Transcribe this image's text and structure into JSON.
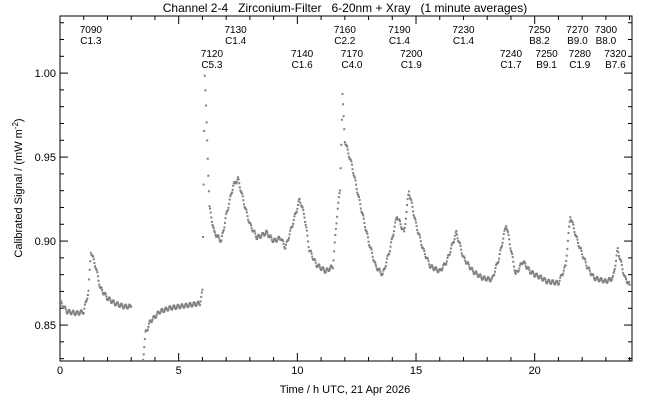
{
  "chart_data": {
    "type": "scatter",
    "title": "Channel 2-4   Zirconium-Filter   6-20nm + Xray   (1 minute averages)",
    "xlabel": "Time / h UTC, 21 Apr 2026",
    "ylabel": "Calibrated Signal / (mW m",
    "ylabel_sup": "-2",
    "ylabel_end": ")",
    "xlim": [
      0,
      24.1
    ],
    "ylim": [
      0.8286,
      1.034
    ],
    "xticks": [
      0,
      5,
      10,
      15,
      20
    ],
    "xtick_labels": [
      "0",
      "5",
      "10",
      "15",
      "20"
    ],
    "yticks": [
      0.85,
      0.9,
      0.95,
      1.0
    ],
    "ytick_labels": [
      "0.85",
      "0.90",
      "0.95",
      "1.00"
    ],
    "point_color": "#808080",
    "segments": [
      [
        [
          0,
          0.864
        ],
        [
          0.3,
          0.858
        ],
        [
          0.7,
          0.857
        ],
        [
          1.0,
          0.858
        ],
        [
          1.2,
          0.87
        ],
        [
          1.3,
          0.894
        ],
        [
          1.5,
          0.885
        ],
        [
          1.7,
          0.872
        ],
        [
          2.0,
          0.866
        ],
        [
          2.3,
          0.863
        ],
        [
          2.7,
          0.861
        ],
        [
          3.0,
          0.861
        ]
      ],
      [
        [
          3.5,
          0.83
        ],
        [
          3.6,
          0.845
        ],
        [
          3.8,
          0.852
        ],
        [
          4.2,
          0.858
        ],
        [
          4.6,
          0.86
        ],
        [
          5.0,
          0.861
        ],
        [
          5.5,
          0.862
        ],
        [
          5.9,
          0.863
        ],
        [
          6.0,
          0.87
        ],
        [
          6.1,
          0.999
        ],
        [
          6.2,
          0.96
        ],
        [
          6.3,
          0.92
        ],
        [
          6.5,
          0.905
        ],
        [
          6.8,
          0.9
        ],
        [
          7.0,
          0.915
        ],
        [
          7.3,
          0.933
        ],
        [
          7.5,
          0.937
        ],
        [
          7.8,
          0.92
        ],
        [
          8.0,
          0.91
        ],
        [
          8.3,
          0.902
        ],
        [
          8.7,
          0.905
        ],
        [
          9.0,
          0.9
        ],
        [
          9.3,
          0.902
        ],
        [
          9.5,
          0.896
        ],
        [
          9.8,
          0.91
        ],
        [
          10.1,
          0.925
        ],
        [
          10.3,
          0.915
        ],
        [
          10.5,
          0.895
        ],
        [
          10.8,
          0.886
        ],
        [
          11.2,
          0.882
        ],
        [
          11.5,
          0.885
        ],
        [
          11.7,
          0.92
        ],
        [
          11.8,
          0.93
        ],
        [
          11.9,
          0.987
        ],
        [
          12.0,
          0.96
        ],
        [
          12.3,
          0.945
        ],
        [
          12.6,
          0.925
        ],
        [
          13.0,
          0.9
        ],
        [
          13.3,
          0.885
        ],
        [
          13.6,
          0.88
        ],
        [
          13.9,
          0.895
        ],
        [
          14.2,
          0.915
        ],
        [
          14.5,
          0.905
        ],
        [
          14.7,
          0.93
        ],
        [
          15.0,
          0.91
        ],
        [
          15.3,
          0.895
        ],
        [
          15.6,
          0.885
        ],
        [
          16.0,
          0.882
        ],
        [
          16.3,
          0.888
        ],
        [
          16.7,
          0.905
        ],
        [
          17.0,
          0.89
        ],
        [
          17.4,
          0.882
        ],
        [
          17.8,
          0.878
        ],
        [
          18.2,
          0.877
        ],
        [
          18.5,
          0.89
        ],
        [
          18.8,
          0.91
        ],
        [
          19.0,
          0.895
        ],
        [
          19.2,
          0.88
        ],
        [
          19.5,
          0.888
        ],
        [
          19.8,
          0.882
        ],
        [
          20.0,
          0.88
        ],
        [
          20.3,
          0.878
        ],
        [
          20.5,
          0.876
        ],
        [
          21.0,
          0.875
        ],
        [
          21.3,
          0.885
        ],
        [
          21.5,
          0.915
        ],
        [
          21.8,
          0.9
        ],
        [
          22.2,
          0.885
        ],
        [
          22.5,
          0.878
        ],
        [
          23.0,
          0.876
        ],
        [
          23.3,
          0.878
        ],
        [
          23.5,
          0.895
        ],
        [
          23.8,
          0.878
        ],
        [
          24.0,
          0.874
        ]
      ]
    ],
    "annotations": [
      {
        "row": 1,
        "hour": 1.3,
        "id": "7090",
        "class": "C1.3"
      },
      {
        "row": 1,
        "hour": 7.4,
        "id": "7130",
        "class": "C1.4"
      },
      {
        "row": 1,
        "hour": 12.0,
        "id": "7160",
        "class": "C2.2"
      },
      {
        "row": 1,
        "hour": 14.3,
        "id": "7190",
        "class": "C1.4"
      },
      {
        "row": 1,
        "hour": 17.0,
        "id": "7230",
        "class": "C1.4"
      },
      {
        "row": 1,
        "hour": 20.2,
        "id": "7250",
        "class": "B8.2"
      },
      {
        "row": 1,
        "hour": 21.8,
        "id": "7270",
        "class": "B9.0"
      },
      {
        "row": 1,
        "hour": 23.0,
        "id": "7300",
        "class": "B8.0"
      },
      {
        "row": 2,
        "hour": 6.4,
        "id": "7120",
        "class": "C5.3"
      },
      {
        "row": 2,
        "hour": 10.2,
        "id": "7140",
        "class": "C1.6"
      },
      {
        "row": 2,
        "hour": 12.3,
        "id": "7170",
        "class": "C4.0"
      },
      {
        "row": 2,
        "hour": 14.8,
        "id": "7200",
        "class": "C1.9"
      },
      {
        "row": 2,
        "hour": 19.0,
        "id": "7240",
        "class": "C1.7"
      },
      {
        "row": 2,
        "hour": 20.5,
        "id": "7250",
        "class": "B9.1"
      },
      {
        "row": 2,
        "hour": 21.9,
        "id": "7280",
        "class": "C1.9"
      },
      {
        "row": 2,
        "hour": 23.4,
        "id": "7320",
        "class": "B7.6"
      }
    ]
  }
}
